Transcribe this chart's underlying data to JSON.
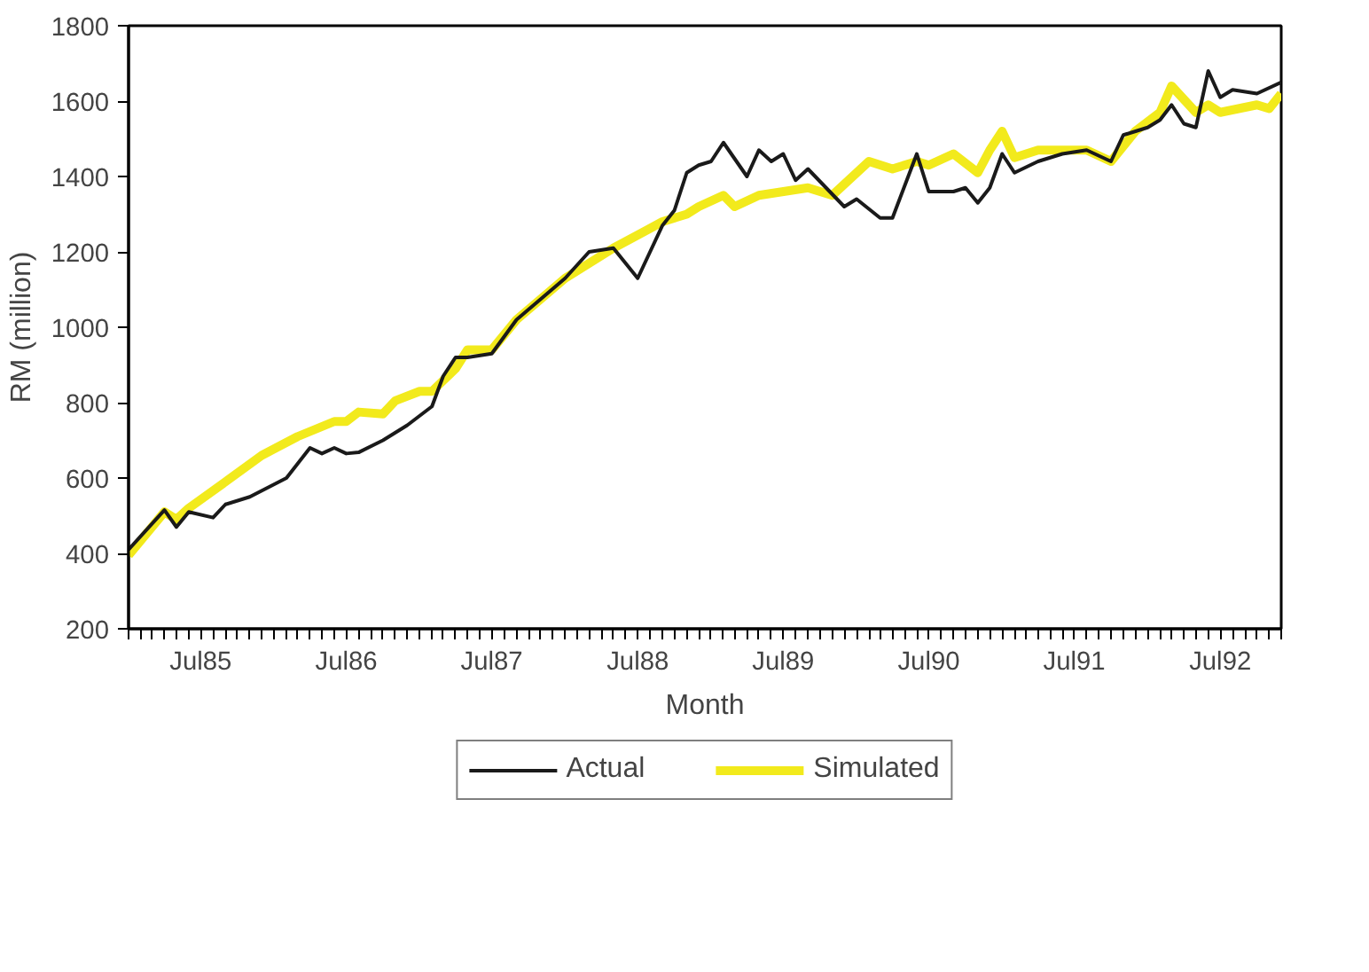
{
  "chart_data": {
    "type": "line",
    "xlabel": "Month",
    "ylabel": "RM (million)",
    "legend": "bottom",
    "grid": false,
    "line_style": "solid",
    "xlim": [
      "1985-01",
      "1992-12"
    ],
    "ylim": [
      200,
      1800
    ],
    "yticks": [
      200,
      400,
      600,
      800,
      1000,
      1200,
      1400,
      1600,
      1800
    ],
    "xticks": [
      {
        "value": "1985-01",
        "label": null
      },
      {
        "value": "1985-02",
        "label": null
      },
      {
        "value": "1985-03",
        "label": null
      },
      {
        "value": "1985-04",
        "label": null
      },
      {
        "value": "1985-05",
        "label": null
      },
      {
        "value": "1985-06",
        "label": null
      },
      {
        "value": "1985-07",
        "label": "Jul85"
      },
      {
        "value": "1985-08",
        "label": null
      },
      {
        "value": "1985-09",
        "label": null
      },
      {
        "value": "1985-10",
        "label": null
      },
      {
        "value": "1985-11",
        "label": null
      },
      {
        "value": "1985-12",
        "label": null
      },
      {
        "value": "1986-01",
        "label": null
      },
      {
        "value": "1986-02",
        "label": null
      },
      {
        "value": "1986-03",
        "label": null
      },
      {
        "value": "1986-04",
        "label": null
      },
      {
        "value": "1986-05",
        "label": null
      },
      {
        "value": "1986-06",
        "label": null
      },
      {
        "value": "1986-07",
        "label": "Jul86"
      },
      {
        "value": "1986-08",
        "label": null
      },
      {
        "value": "1986-09",
        "label": null
      },
      {
        "value": "1986-10",
        "label": null
      },
      {
        "value": "1986-11",
        "label": null
      },
      {
        "value": "1986-12",
        "label": null
      },
      {
        "value": "1987-01",
        "label": null
      },
      {
        "value": "1987-02",
        "label": null
      },
      {
        "value": "1987-03",
        "label": null
      },
      {
        "value": "1987-04",
        "label": null
      },
      {
        "value": "1987-05",
        "label": null
      },
      {
        "value": "1987-06",
        "label": null
      },
      {
        "value": "1987-07",
        "label": "Jul87"
      },
      {
        "value": "1987-08",
        "label": null
      },
      {
        "value": "1987-09",
        "label": null
      },
      {
        "value": "1987-10",
        "label": null
      },
      {
        "value": "1987-11",
        "label": null
      },
      {
        "value": "1987-12",
        "label": null
      },
      {
        "value": "1988-01",
        "label": null
      },
      {
        "value": "1988-02",
        "label": null
      },
      {
        "value": "1988-03",
        "label": null
      },
      {
        "value": "1988-04",
        "label": null
      },
      {
        "value": "1988-05",
        "label": null
      },
      {
        "value": "1988-06",
        "label": null
      },
      {
        "value": "1988-07",
        "label": "Jul88"
      },
      {
        "value": "1988-08",
        "label": null
      },
      {
        "value": "1988-09",
        "label": null
      },
      {
        "value": "1988-10",
        "label": null
      },
      {
        "value": "1988-11",
        "label": null
      },
      {
        "value": "1988-12",
        "label": null
      },
      {
        "value": "1989-01",
        "label": null
      },
      {
        "value": "1989-02",
        "label": null
      },
      {
        "value": "1989-03",
        "label": null
      },
      {
        "value": "1989-04",
        "label": null
      },
      {
        "value": "1989-05",
        "label": null
      },
      {
        "value": "1989-06",
        "label": null
      },
      {
        "value": "1989-07",
        "label": "Jul89"
      },
      {
        "value": "1989-08",
        "label": null
      },
      {
        "value": "1989-09",
        "label": null
      },
      {
        "value": "1989-10",
        "label": null
      },
      {
        "value": "1989-11",
        "label": null
      },
      {
        "value": "1989-12",
        "label": null
      },
      {
        "value": "1990-01",
        "label": null
      },
      {
        "value": "1990-02",
        "label": null
      },
      {
        "value": "1990-03",
        "label": null
      },
      {
        "value": "1990-04",
        "label": null
      },
      {
        "value": "1990-05",
        "label": null
      },
      {
        "value": "1990-06",
        "label": null
      },
      {
        "value": "1990-07",
        "label": "Jul90"
      },
      {
        "value": "1990-08",
        "label": null
      },
      {
        "value": "1990-09",
        "label": null
      },
      {
        "value": "1990-10",
        "label": null
      },
      {
        "value": "1990-11",
        "label": null
      },
      {
        "value": "1990-12",
        "label": null
      },
      {
        "value": "1991-01",
        "label": null
      },
      {
        "value": "1991-02",
        "label": null
      },
      {
        "value": "1991-03",
        "label": null
      },
      {
        "value": "1991-04",
        "label": null
      },
      {
        "value": "1991-05",
        "label": null
      },
      {
        "value": "1991-06",
        "label": null
      },
      {
        "value": "1991-07",
        "label": "Jul91"
      },
      {
        "value": "1991-08",
        "label": null
      },
      {
        "value": "1991-09",
        "label": null
      },
      {
        "value": "1991-10",
        "label": null
      },
      {
        "value": "1991-11",
        "label": null
      },
      {
        "value": "1991-12",
        "label": null
      },
      {
        "value": "1992-01",
        "label": null
      },
      {
        "value": "1992-02",
        "label": null
      },
      {
        "value": "1992-03",
        "label": null
      },
      {
        "value": "1992-04",
        "label": null
      },
      {
        "value": "1992-05",
        "label": null
      },
      {
        "value": "1992-06",
        "label": null
      },
      {
        "value": "1992-07",
        "label": "Jul92"
      },
      {
        "value": "1992-08",
        "label": null
      },
      {
        "value": "1992-09",
        "label": null
      },
      {
        "value": "1992-10",
        "label": null
      },
      {
        "value": "1992-11",
        "label": null
      },
      {
        "value": "1992-12",
        "label": null
      }
    ],
    "series": [
      {
        "name": "Actual",
        "color": "#1a1a1a",
        "x": [
          "1985-01",
          "1985-04",
          "1985-05",
          "1985-06",
          "1985-08",
          "1985-09",
          "1985-11",
          "1986-02",
          "1986-04",
          "1986-05",
          "1986-06",
          "1986-07",
          "1986-08",
          "1986-10",
          "1986-12",
          "1987-02",
          "1987-03",
          "1987-04",
          "1987-05",
          "1987-07",
          "1987-09",
          "1988-01",
          "1988-03",
          "1988-05",
          "1988-07",
          "1988-09",
          "1988-10",
          "1988-11",
          "1988-12",
          "1989-01",
          "1989-02",
          "1989-04",
          "1989-05",
          "1989-06",
          "1989-07",
          "1989-08",
          "1989-09",
          "1989-12",
          "1990-01",
          "1990-03",
          "1990-04",
          "1990-06",
          "1990-07",
          "1990-09",
          "1990-10",
          "1990-11",
          "1990-12",
          "1991-01",
          "1991-02",
          "1991-04",
          "1991-06",
          "1991-08",
          "1991-10",
          "1991-11",
          "1992-01",
          "1992-02",
          "1992-03",
          "1992-04",
          "1992-05",
          "1992-06",
          "1992-07",
          "1992-08",
          "1992-10",
          "1992-12"
        ],
        "values": [
          410,
          515,
          470,
          510,
          495,
          530,
          550,
          600,
          680,
          665,
          680,
          665,
          668,
          700,
          740,
          790,
          870,
          920,
          920,
          930,
          1020,
          1130,
          1200,
          1210,
          1130,
          1270,
          1310,
          1410,
          1430,
          1440,
          1490,
          1400,
          1470,
          1440,
          1460,
          1390,
          1420,
          1320,
          1340,
          1290,
          1290,
          1460,
          1360,
          1360,
          1370,
          1330,
          1370,
          1460,
          1410,
          1440,
          1460,
          1470,
          1440,
          1510,
          1530,
          1550,
          1590,
          1540,
          1530,
          1680,
          1610,
          1630,
          1620,
          1650
        ]
      },
      {
        "name": "Simulated",
        "color": "#f2ea1c",
        "x": [
          "1985-01",
          "1985-04",
          "1985-05",
          "1985-06",
          "1985-09",
          "1985-12",
          "1986-03",
          "1986-06",
          "1986-07",
          "1986-08",
          "1986-10",
          "1986-11",
          "1987-01",
          "1987-02",
          "1987-04",
          "1987-05",
          "1987-07",
          "1987-09",
          "1988-01",
          "1988-05",
          "1988-09",
          "1988-11",
          "1988-12",
          "1989-02",
          "1989-03",
          "1989-05",
          "1989-09",
          "1989-11",
          "1990-02",
          "1990-04",
          "1990-06",
          "1990-07",
          "1990-09",
          "1990-11",
          "1990-12",
          "1991-01",
          "1991-02",
          "1991-04",
          "1991-08",
          "1991-10",
          "1991-12",
          "1992-02",
          "1992-03",
          "1992-05",
          "1992-06",
          "1992-07",
          "1992-10",
          "1992-11",
          "1992-12"
        ],
        "values": [
          395,
          510,
          490,
          520,
          590,
          660,
          710,
          750,
          750,
          775,
          770,
          805,
          830,
          830,
          890,
          940,
          940,
          1020,
          1130,
          1210,
          1280,
          1300,
          1320,
          1350,
          1320,
          1350,
          1370,
          1350,
          1440,
          1420,
          1440,
          1430,
          1460,
          1410,
          1470,
          1520,
          1450,
          1470,
          1470,
          1440,
          1520,
          1570,
          1640,
          1570,
          1590,
          1570,
          1590,
          1580,
          1620
        ]
      }
    ]
  }
}
